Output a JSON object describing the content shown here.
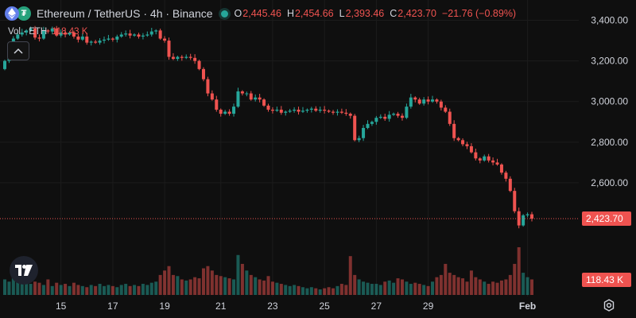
{
  "header": {
    "title": "Ethereum / TetherUS · 4h · Binance",
    "open_label": "O",
    "open": "2,445.46",
    "high_label": "H",
    "high": "2,454.66",
    "low_label": "L",
    "low": "2,393.46",
    "close_label": "C",
    "close": "2,423.70",
    "change": "−21.76 (−0.89%)",
    "base_icon": "ethereum-icon",
    "quote_icon": "tether-icon"
  },
  "volume": {
    "label": "Vol · ETH",
    "value": "118.43 K"
  },
  "price_tag": "2,423.70",
  "volume_tag": "118.43 K",
  "colors": {
    "up": "#26a69a",
    "down": "#ef5350",
    "background": "#0f0f0f",
    "grid": "#1c1c1c",
    "text": "#d1d4dc"
  },
  "chart_data": {
    "type": "candlestick",
    "title": "Ethereum / TetherUS · 4h · Binance",
    "y_ticks": [
      "3,400.00",
      "3,200.00",
      "3,000.00",
      "2,800.00",
      "2,600.00"
    ],
    "y_tick_values": [
      3400,
      3200,
      3000,
      2800,
      2600
    ],
    "x_ticks": [
      "15",
      "17",
      "19",
      "21",
      "23",
      "25",
      "27",
      "29",
      "Feb"
    ],
    "ylim": [
      2040,
      3500
    ],
    "grid": true,
    "last_price": 2423.7,
    "series": [
      {
        "name": "price",
        "values": [
          3200,
          3250,
          3310,
          3330,
          3340,
          3350,
          3360,
          3315,
          3310,
          3350,
          3345,
          3360,
          3325,
          3340,
          3330,
          3340,
          3320,
          3305,
          3320,
          3290,
          3295,
          3290,
          3300,
          3305,
          3310,
          3305,
          3320,
          3330,
          3335,
          3325,
          3330,
          3320,
          3325,
          3330,
          3345,
          3350,
          3310,
          3300,
          3220,
          3210,
          3220,
          3215,
          3220,
          3215,
          3200,
          3160,
          3110,
          3040,
          3010,
          2960,
          2940,
          2950,
          2940,
          2975,
          3050,
          3040,
          3040,
          3010,
          3020,
          3010,
          2980,
          2960,
          2955,
          2960,
          2945,
          2950,
          2955,
          2960,
          2950,
          2955,
          2960,
          2965,
          2955,
          2960,
          2955,
          2950,
          2945,
          2950,
          2945,
          2940,
          2930,
          2810,
          2820,
          2870,
          2890,
          2900,
          2920,
          2925,
          2915,
          2935,
          2940,
          2930,
          2920,
          2975,
          3020,
          3010,
          2990,
          3010,
          3000,
          3010,
          3000,
          2970,
          2950,
          2890,
          2820,
          2810,
          2790,
          2780,
          2750,
          2720,
          2710,
          2730,
          2710,
          2700,
          2690,
          2650,
          2620,
          2560,
          2460,
          2390,
          2440,
          2445,
          2423.7
        ]
      },
      {
        "name": "volume",
        "values": [
          70,
          60,
          80,
          90,
          55,
          65,
          50,
          60,
          55,
          45,
          70,
          40,
          55,
          45,
          50,
          40,
          55,
          45,
          40,
          35,
          45,
          40,
          50,
          40,
          45,
          40,
          35,
          45,
          50,
          40,
          45,
          40,
          50,
          45,
          55,
          60,
          90,
          110,
          130,
          90,
          85,
          70,
          65,
          70,
          80,
          75,
          120,
          130,
          110,
          90,
          85,
          80,
          75,
          70,
          180,
          140,
          110,
          90,
          80,
          70,
          65,
          85,
          60,
          55,
          50,
          45,
          40,
          45,
          40,
          35,
          30,
          35,
          30,
          25,
          30,
          35,
          30,
          40,
          50,
          45,
          175,
          90,
          70,
          60,
          55,
          50,
          50,
          45,
          60,
          65,
          55,
          75,
          70,
          60,
          50,
          55,
          50,
          45,
          40,
          60,
          80,
          90,
          140,
          100,
          90,
          80,
          75,
          60,
          110,
          80,
          70,
          60,
          50,
          60,
          55,
          65,
          70,
          90,
          140,
          215,
          100,
          80,
          70
        ]
      }
    ]
  }
}
